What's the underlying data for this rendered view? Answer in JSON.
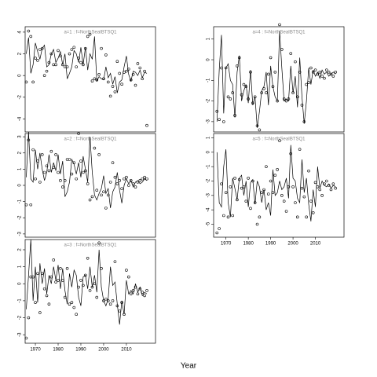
{
  "xlabel": "Year",
  "chart_data": [
    {
      "type": "line",
      "title": "a=1 : f=NorthSeaIBTSQ1",
      "xlim": [
        1965.5,
        2022.8
      ],
      "ylim": [
        -5.2,
        4.5
      ],
      "yticks": [
        -4,
        -2,
        0,
        2,
        4
      ],
      "x": [
        1966,
        1967,
        1968,
        1969,
        1970,
        1971,
        1972,
        1973,
        1974,
        1975,
        1976,
        1977,
        1978,
        1979,
        1980,
        1981,
        1982,
        1983,
        1984,
        1985,
        1986,
        1987,
        1988,
        1989,
        1990,
        1991,
        1992,
        1993,
        1994,
        1995,
        1996,
        1997,
        1998,
        1999,
        2000,
        2001,
        2002,
        2003,
        2004,
        2005,
        2006,
        2007,
        2008,
        2009,
        2010,
        2011,
        2012,
        2013,
        2014,
        2015,
        2016,
        2017,
        2018,
        2019
      ],
      "series": [
        {
          "color": "#000000",
          "marker": "none",
          "values": [
            2.0,
            3.5,
            0.2,
            1.0,
            3.0,
            2.2,
            1.5,
            2.5,
            2.8,
            0.8,
            1.0,
            2.0,
            2.4,
            1.2,
            1.6,
            2.2,
            1.0,
            2.0,
            -0.3,
            0.2,
            0.8,
            2.3,
            2.0,
            1.2,
            2.6,
            1.0,
            2.6,
            0.5,
            2.0,
            1.5,
            3.6,
            -0.5,
            -0.1,
            -0.3,
            -0.4,
            0.8,
            -0.2,
            0.2,
            -0.8,
            -0.1,
            -1.6,
            -0.6,
            -0.4,
            0.8,
            1.8,
            0.1,
            -0.5,
            0.4,
            0.3,
            0.0,
            0.5,
            -0.2,
            0.3,
            0.2
          ]
        },
        {
          "color": "#000000",
          "marker": "circle",
          "values": [
            -0.6,
            4.1,
            3.6,
            -0.6,
            1.6,
            1.4,
            2.4,
            2.5,
            0.0,
            0.4,
            1.2,
            2.0,
            1.0,
            1.0,
            2.3,
            1.8,
            1.0,
            0.8,
            0.8,
            2.0,
            2.4,
            2.6,
            0.8,
            1.6,
            1.2,
            1.0,
            2.5,
            3.6,
            3.8,
            -0.5,
            -0.3,
            -0.4,
            0.1,
            2.5,
            -0.3,
            1.9,
            -0.6,
            -1.9,
            -1.0,
            -1.5,
            1.3,
            0.2,
            -0.8,
            0.3,
            0.4,
            0.6,
            -0.4,
            0.1,
            -0.9,
            1.1,
            0.7,
            -0.3,
            0.4,
            -4.6
          ]
        }
      ]
    },
    {
      "type": "line",
      "title": "a=2 : f=NorthSeaIBTSQ1",
      "xlim": [
        1965.5,
        2022.8
      ],
      "ylim": [
        -3.2,
        3.2
      ],
      "yticks": [
        -3,
        -2,
        -1,
        0,
        1,
        2,
        3
      ],
      "x": [
        1966,
        1967,
        1968,
        1969,
        1970,
        1971,
        1972,
        1973,
        1974,
        1975,
        1976,
        1977,
        1978,
        1979,
        1980,
        1981,
        1982,
        1983,
        1984,
        1985,
        1986,
        1987,
        1988,
        1989,
        1990,
        1991,
        1992,
        1993,
        1994,
        1995,
        1996,
        1997,
        1998,
        1999,
        2000,
        2001,
        2002,
        2003,
        2004,
        2005,
        2006,
        2007,
        2008,
        2009,
        2010,
        2011,
        2012,
        2013,
        2014,
        2015,
        2016,
        2017,
        2018,
        2019
      ],
      "series": [
        {
          "color": "#000000",
          "marker": "none",
          "values": [
            0.5,
            3.3,
            0.4,
            0.2,
            2.2,
            1.0,
            2.0,
            1.0,
            0.3,
            0.8,
            1.9,
            0.8,
            1.4,
            0.9,
            1.9,
            0.7,
            1.5,
            -0.7,
            -0.4,
            0.2,
            1.6,
            1.3,
            0.7,
            1.4,
            0.5,
            1.8,
            1.0,
            0.2,
            3.0,
            0.8,
            -0.6,
            -0.9,
            -0.5,
            -0.2,
            0.6,
            -0.5,
            -0.2,
            -1.4,
            -0.4,
            -0.1,
            0.8,
            -0.3,
            -1.1,
            0.0,
            0.4,
            0.1,
            0.3,
            -0.1,
            0.2,
            0.3,
            0.1,
            0.2,
            0.4,
            0.3
          ]
        },
        {
          "color": "#000000",
          "marker": "circle",
          "values": [
            -1.2,
            2.8,
            -1.2,
            2.2,
            0.4,
            1.5,
            0.2,
            1.9,
            0.8,
            1.2,
            0.9,
            2.1,
            1.1,
            1.9,
            0.8,
            0.3,
            -0.1,
            0.3,
            1.6,
            1.6,
            0.7,
            1.4,
            0.4,
            3.2,
            1.5,
            0.8,
            0.9,
            0.1,
            -0.9,
            -0.7,
            2.3,
            -0.3,
            1.9,
            -0.6,
            -0.4,
            -1.4,
            -0.6,
            0.2,
            1.4,
            0.5,
            0.1,
            0.3,
            -0.2,
            0.4,
            0.5,
            0.0,
            0.3,
            0.1,
            -0.1,
            0.2,
            0.3,
            0.4,
            0.5,
            0.4
          ]
        }
      ]
    },
    {
      "type": "line",
      "title": "a=3 : f=NorthSeaIBTSQ1",
      "xlim": [
        1965.5,
        2022.8
      ],
      "ylim": [
        -3.5,
        2.6
      ],
      "yticks": [
        -3,
        -2,
        -1,
        0,
        1,
        2
      ],
      "x": [
        1966,
        1967,
        1968,
        1969,
        1970,
        1971,
        1972,
        1973,
        1974,
        1975,
        1976,
        1977,
        1978,
        1979,
        1980,
        1981,
        1982,
        1983,
        1984,
        1985,
        1986,
        1987,
        1988,
        1989,
        1990,
        1991,
        1992,
        1993,
        1994,
        1995,
        1996,
        1997,
        1998,
        1999,
        2000,
        2001,
        2002,
        2003,
        2004,
        2005,
        2006,
        2007,
        2008,
        2009,
        2010,
        2011,
        2012,
        2013,
        2014,
        2015,
        2016,
        2017,
        2018,
        2019
      ],
      "series": [
        {
          "color": "#000000",
          "marker": "none",
          "values": [
            -1.5,
            0.5,
            2.6,
            -1.0,
            1.0,
            -1.1,
            1.2,
            0.0,
            0.9,
            -0.6,
            0.5,
            0.0,
            1.0,
            0.2,
            1.1,
            -0.3,
            0.9,
            -0.4,
            -1.2,
            0.6,
            -0.2,
            0.8,
            0.5,
            -0.8,
            -1.3,
            0.4,
            0.5,
            -0.3,
            1.0,
            -0.2,
            0.5,
            -0.5,
            2.0,
            -0.2,
            -1.0,
            -1.3,
            -0.9,
            1.0,
            -0.1,
            0.1,
            -1.2,
            -2.4,
            -1.0,
            -1.8,
            0.2,
            -0.6,
            -0.4,
            -0.6,
            0,
            -0.5,
            -0.2,
            -0.7,
            -0.5,
            -0.6
          ]
        },
        {
          "color": "#000000",
          "marker": "circle",
          "values": [
            -3.2,
            -2.0,
            0.4,
            0.4,
            -1.1,
            0.6,
            -1.7,
            0.6,
            -0.3,
            -0.7,
            -1.2,
            0.4,
            1.4,
            0.1,
            0.2,
            0.9,
            0.2,
            -0.8,
            0.9,
            -1.2,
            -1.1,
            -1.4,
            -1.8,
            -0.2,
            0.2,
            -0.1,
            0.5,
            1.5,
            -0.4,
            -0.2,
            0.0,
            -0.8,
            2.4,
            0.9,
            -1.0,
            -0.9,
            -1.0,
            -1.2,
            -1.0,
            1.3,
            -1.3,
            -1.6,
            -1.1,
            -1.8,
            0.8,
            0.4,
            -0.6,
            -0.4,
            -0.2,
            -0.6,
            -0.3,
            -0.5,
            -0.7,
            -0.4
          ]
        }
      ]
    },
    {
      "type": "line",
      "title": "a=4 : f=NorthSeaIBTSQ1",
      "xlim": [
        1964.5,
        2022.8
      ],
      "ylim": [
        -3.5,
        1.6
      ],
      "yticks": [
        -3,
        -2,
        -1,
        0,
        1
      ],
      "x": [
        1966,
        1967,
        1968,
        1969,
        1970,
        1971,
        1972,
        1973,
        1974,
        1975,
        1976,
        1977,
        1978,
        1979,
        1980,
        1981,
        1982,
        1983,
        1984,
        1985,
        1986,
        1987,
        1988,
        1989,
        1990,
        1991,
        1992,
        1993,
        1994,
        1995,
        1996,
        1997,
        1998,
        1999,
        2000,
        2001,
        2002,
        2003,
        2004,
        2005,
        2006,
        2007,
        2008,
        2009,
        2010,
        2011,
        2012,
        2013,
        2014,
        2015,
        2016,
        2017,
        2018,
        2019
      ],
      "series": [
        {
          "color": "#000000",
          "marker": "none",
          "values": [
            -3.0,
            -0.5,
            1.2,
            -2.6,
            -0.4,
            -0.2,
            -1.0,
            -1.2,
            -2.8,
            -0.6,
            0.2,
            -2.0,
            -1.5,
            -1.2,
            -2.1,
            -0.5,
            -2.2,
            -1.8,
            -3.3,
            -2.5,
            -1.5,
            -1.3,
            -0.6,
            -2.2,
            -0.3,
            -1.3,
            -1.8,
            -2.0,
            1.4,
            -0.4,
            -2.0,
            -1.9,
            -2.0,
            -0.3,
            -1.6,
            -0.8,
            -2.3,
            0.1,
            -1.8,
            -3.1,
            -2.0,
            -0.4,
            -1.2,
            -0.5,
            -0.8,
            -0.6,
            -0.9,
            -0.5,
            -0.7,
            -0.6,
            -0.8,
            -0.7,
            -0.6,
            -0.7
          ]
        },
        {
          "color": "#000000",
          "marker": "circle",
          "values": [
            -2.5,
            -2.9,
            -0.4,
            -3.0,
            -0.4,
            -1.8,
            -1.9,
            -1.6,
            -2.7,
            -0.3,
            0.1,
            -1.7,
            -1.2,
            -1.3,
            -1.9,
            -0.6,
            -2.1,
            -1.8,
            -3.2,
            -3.4,
            -1.6,
            -1.4,
            -1.6,
            -0.7,
            0.1,
            -1.3,
            -0.6,
            -2.0,
            1.7,
            0.5,
            -1.9,
            -2.0,
            -1.9,
            0.3,
            -1.6,
            -0.1,
            -1.8,
            -0.6,
            -2.2,
            -3.0,
            -1.2,
            -1.1,
            -0.4,
            -0.6,
            -0.5,
            -0.7,
            -0.6,
            -0.8,
            -0.9,
            -0.5,
            -0.6,
            -0.7,
            -0.8,
            -0.6
          ]
        }
      ]
    },
    {
      "type": "line",
      "title": "a=5 : f=NorthSeaIBTSQ1",
      "xlim": [
        1964.5,
        2022.8
      ],
      "ylim": [
        -5.9,
        1.3
      ],
      "yticks": [
        -5,
        -4,
        -3,
        -2,
        -1,
        0,
        1
      ],
      "x": [
        1966,
        1967,
        1968,
        1969,
        1970,
        1971,
        1972,
        1973,
        1974,
        1975,
        1976,
        1977,
        1978,
        1979,
        1980,
        1981,
        1982,
        1983,
        1984,
        1985,
        1986,
        1987,
        1988,
        1989,
        1990,
        1991,
        1992,
        1993,
        1994,
        1995,
        1996,
        1997,
        1998,
        1999,
        2000,
        2001,
        2002,
        2003,
        2004,
        2005,
        2006,
        2007,
        2008,
        2009,
        2010,
        2011,
        2012,
        2013,
        2014,
        2015,
        2016,
        2017,
        2018,
        2019
      ],
      "series": [
        {
          "color": "#000000",
          "marker": "none",
          "values": [
            0.0,
            -3.5,
            -3.8,
            -1.0,
            0.2,
            -3.5,
            -4.5,
            -1.8,
            -2.5,
            -3.3,
            -1.8,
            -1.6,
            -3.0,
            -2.0,
            -3.8,
            -2.1,
            -1.9,
            -3.6,
            -2.0,
            -2.4,
            -3.5,
            -2.6,
            -4.0,
            -3.5,
            -4.4,
            -1.2,
            -3.0,
            -2.8,
            -2.0,
            -2.6,
            -2.4,
            -1.8,
            -3.2,
            0.5,
            -1.8,
            -2.0,
            -3.2,
            -3.5,
            -0.5,
            -2.8,
            -1.8,
            -3.6,
            -4.8,
            -2.6,
            -3.8,
            -1.0,
            -2.5,
            -2.0,
            -2.3,
            -2.4,
            -2.2,
            -2.5,
            -2.3,
            -2.4
          ]
        },
        {
          "color": "#000000",
          "marker": "circle",
          "values": [
            -5.6,
            -5.3,
            -2.2,
            -4.4,
            -2.8,
            -4.5,
            -2.4,
            -4.4,
            -1.8,
            -3.3,
            -1.9,
            -2.5,
            -2.4,
            -3.4,
            -1.8,
            -3.9,
            -2.0,
            -3.5,
            -5.0,
            -4.5,
            -2.8,
            -2.6,
            -1.0,
            -2.9,
            -2.0,
            -2.8,
            -1.6,
            -1.2,
            0.8,
            -3.0,
            -3.4,
            -4.1,
            -2.4,
            -0.1,
            -2.4,
            -3.5,
            -4.5,
            0.2,
            -2.5,
            -3.1,
            -4.5,
            -1.3,
            -3.4,
            -4.2,
            -2.1,
            -2.4,
            -2.6,
            -3.0,
            -2.2,
            -2.0,
            -2.3,
            -2.6,
            -2.2,
            -2.5
          ]
        }
      ]
    }
  ]
}
